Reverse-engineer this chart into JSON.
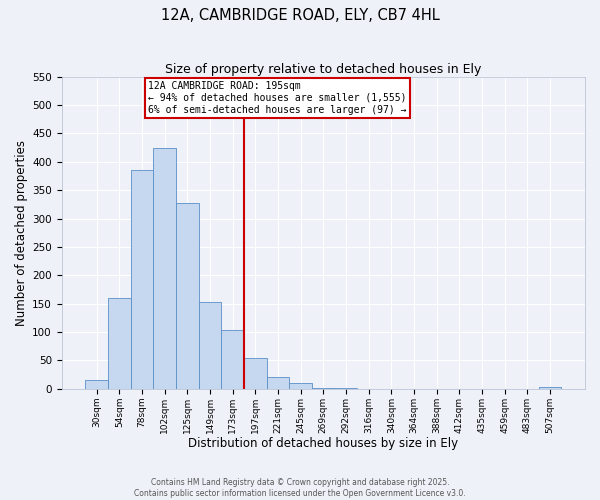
{
  "title": "12A, CAMBRIDGE ROAD, ELY, CB7 4HL",
  "subtitle": "Size of property relative to detached houses in Ely",
  "xlabel": "Distribution of detached houses by size in Ely",
  "ylabel": "Number of detached properties",
  "bin_labels": [
    "30sqm",
    "54sqm",
    "78sqm",
    "102sqm",
    "125sqm",
    "149sqm",
    "173sqm",
    "197sqm",
    "221sqm",
    "245sqm",
    "269sqm",
    "292sqm",
    "316sqm",
    "340sqm",
    "364sqm",
    "388sqm",
    "412sqm",
    "435sqm",
    "459sqm",
    "483sqm",
    "507sqm"
  ],
  "bar_values": [
    15,
    160,
    385,
    425,
    328,
    153,
    103,
    55,
    20,
    10,
    2,
    1,
    0,
    0,
    0,
    0,
    0,
    0,
    0,
    0,
    3
  ],
  "bar_color": "#c5d8f0",
  "bar_edge_color": "#5b8fc7",
  "vline_color": "#cc0000",
  "annotation_title": "12A CAMBRIDGE ROAD: 195sqm",
  "annotation_line1": "← 94% of detached houses are smaller (1,555)",
  "annotation_line2": "6% of semi-detached houses are larger (97) →",
  "annotation_box_color": "#cc0000",
  "ylim": [
    0,
    550
  ],
  "yticks": [
    0,
    50,
    100,
    150,
    200,
    250,
    300,
    350,
    400,
    450,
    500,
    550
  ],
  "footnote1": "Contains HM Land Registry data © Crown copyright and database right 2025.",
  "footnote2": "Contains public sector information licensed under the Open Government Licence v3.0.",
  "bg_color": "#eef2f8"
}
